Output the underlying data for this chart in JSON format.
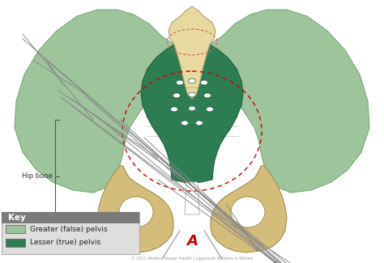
{
  "bg_color": "#ffffff",
  "greater_pelvis_color": "#9dc49a",
  "lesser_pelvis_color": "#2e7d52",
  "hip_bone_color": "#d4bc7a",
  "sacrum_color": "#e8d9a0",
  "sacrum_edge": "#b0a070",
  "key_bg_color": "#7a7a7a",
  "key_title": "Key",
  "key_items": [
    {
      "label": "Greater (false) pelvis",
      "color": "#9dc49a"
    },
    {
      "label": "Lesser (true) pelvis",
      "color": "#2e7d52"
    }
  ],
  "label_hip_bone": "Hip bone",
  "label_A": "A",
  "copyright": "© 2011 Wolters Kluwer Health | Lippincott Williams & Wilkins",
  "dashed_circle_color": "#cc0000",
  "white_color": "#ffffff",
  "ann_color": "#888888",
  "ilium_edge": "#7aaa7a",
  "lesser_edge": "#1a6040"
}
